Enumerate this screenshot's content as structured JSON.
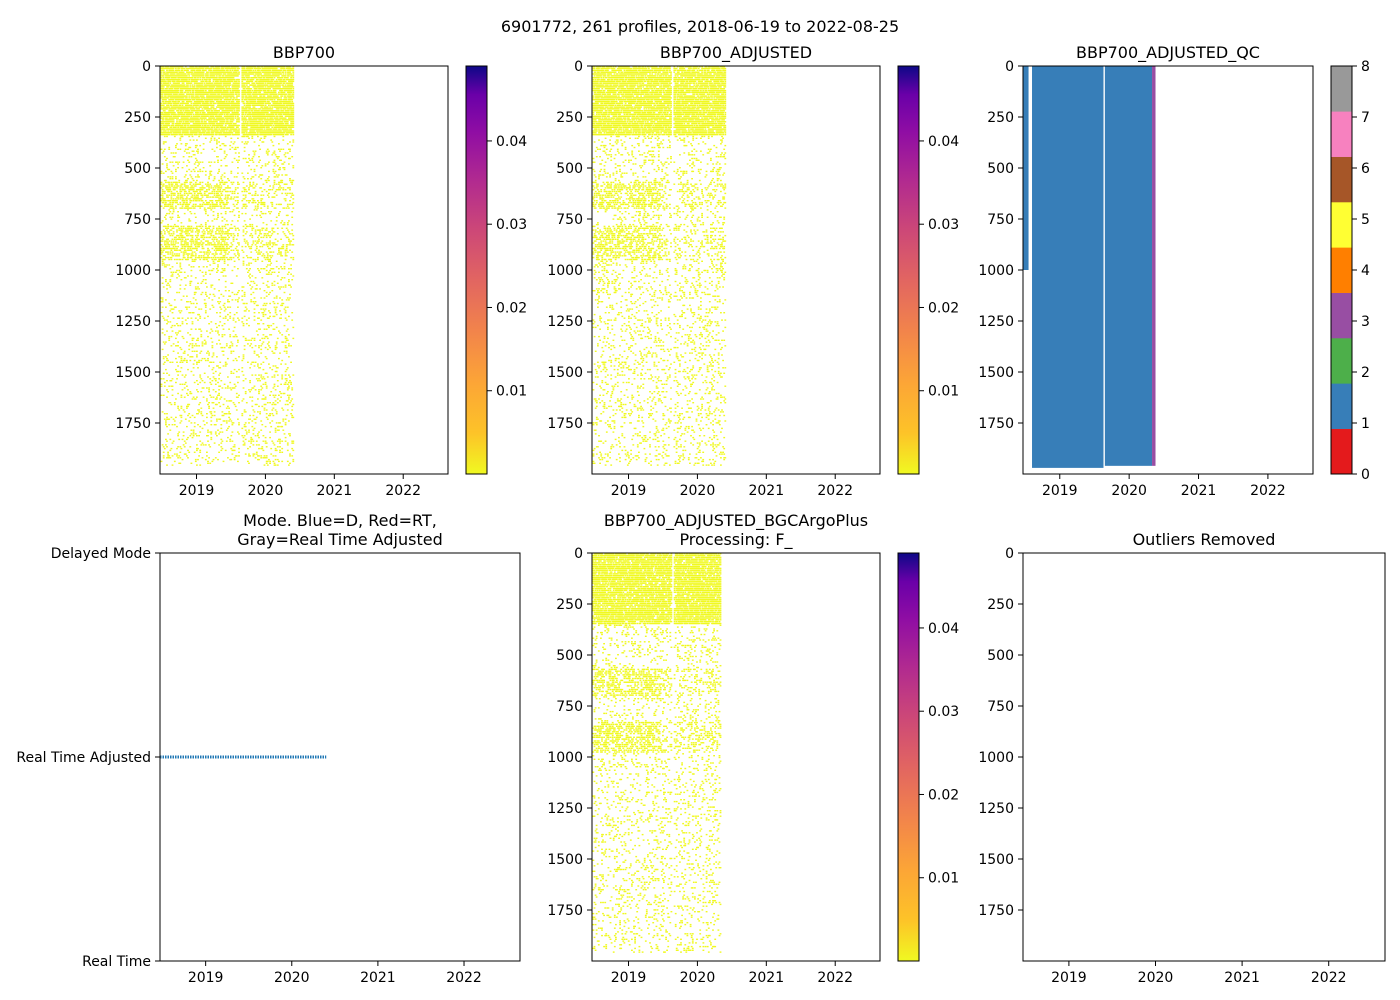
{
  "suptitle": "6901772, 261 profiles, 2018-06-19 to 2022-08-25",
  "chart_data": [
    {
      "type": "heatmap",
      "title": "BBP700",
      "x_ticks": [
        "2019",
        "2020",
        "2021",
        "2022"
      ],
      "x_tick_values": [
        2019,
        2020,
        2021,
        2022
      ],
      "xlim": [
        2018.47,
        2022.65
      ],
      "y_ticks": [
        "0",
        "250",
        "500",
        "750",
        "1000",
        "1250",
        "1500",
        "1750"
      ],
      "y_tick_values": [
        0,
        250,
        500,
        750,
        1000,
        1250,
        1500,
        1750
      ],
      "ylim": [
        0,
        2000
      ],
      "y_inverted": true,
      "data_extent": {
        "x": [
          2018.47,
          2020.4
        ],
        "y": [
          0,
          1960
        ]
      },
      "dense_bands": [
        [
          0,
          340
        ],
        [
          560,
          700
        ],
        [
          780,
          950
        ]
      ],
      "data_color": "#f0f921",
      "colorbar": {
        "colormap": "plasma_r",
        "range": [
          0,
          0.049
        ],
        "ticks": [
          "0.01",
          "0.02",
          "0.03",
          "0.04"
        ],
        "tick_values": [
          0.01,
          0.02,
          0.03,
          0.04
        ]
      }
    },
    {
      "type": "heatmap",
      "title": "BBP700_ADJUSTED",
      "x_ticks": [
        "2019",
        "2020",
        "2021",
        "2022"
      ],
      "x_tick_values": [
        2019,
        2020,
        2021,
        2022
      ],
      "xlim": [
        2018.47,
        2022.65
      ],
      "y_ticks": [
        "0",
        "250",
        "500",
        "750",
        "1000",
        "1250",
        "1500",
        "1750"
      ],
      "y_tick_values": [
        0,
        250,
        500,
        750,
        1000,
        1250,
        1500,
        1750
      ],
      "ylim": [
        0,
        2000
      ],
      "y_inverted": true,
      "data_extent": {
        "x": [
          2018.47,
          2020.4
        ],
        "y": [
          0,
          1960
        ]
      },
      "dense_bands": [
        [
          0,
          340
        ],
        [
          560,
          700
        ],
        [
          780,
          950
        ]
      ],
      "data_color": "#f0f921",
      "colorbar": {
        "colormap": "plasma_r",
        "range": [
          0,
          0.049
        ],
        "ticks": [
          "0.01",
          "0.02",
          "0.03",
          "0.04"
        ],
        "tick_values": [
          0.01,
          0.02,
          0.03,
          0.04
        ]
      }
    },
    {
      "type": "heatmap",
      "title": "BBP700_ADJUSTED_QC",
      "x_ticks": [
        "2019",
        "2020",
        "2021",
        "2022"
      ],
      "x_tick_values": [
        2019,
        2020,
        2021,
        2022
      ],
      "xlim": [
        2018.47,
        2022.65
      ],
      "y_ticks": [
        "0",
        "250",
        "500",
        "750",
        "1000",
        "1250",
        "1500",
        "1750"
      ],
      "y_tick_values": [
        0,
        250,
        500,
        750,
        1000,
        1250,
        1500,
        1750
      ],
      "ylim": [
        0,
        2000
      ],
      "y_inverted": true,
      "qc_blocks": [
        {
          "x": [
            2018.47,
            2018.55
          ],
          "y": [
            0,
            1000
          ],
          "flag": 1
        },
        {
          "x": [
            2018.6,
            2019.63
          ],
          "y": [
            0,
            1970
          ],
          "flag": 1
        },
        {
          "x": [
            2019.65,
            2020.33
          ],
          "y": [
            0,
            1960
          ],
          "flag": 1
        },
        {
          "x": [
            2020.33,
            2020.38
          ],
          "y": [
            0,
            1960
          ],
          "flag": 3
        }
      ],
      "colorbar": {
        "colors": [
          "#e41a1c",
          "#377eb8",
          "#4daf4a",
          "#984ea3",
          "#ff7f00",
          "#ffff33",
          "#a65628",
          "#f781bf",
          "#999999"
        ],
        "range": [
          0,
          8
        ],
        "ticks": [
          "0",
          "1",
          "2",
          "3",
          "4",
          "5",
          "6",
          "7",
          "8"
        ],
        "tick_values": [
          0,
          1,
          2,
          3,
          4,
          5,
          6,
          7,
          8
        ]
      }
    },
    {
      "type": "line",
      "title_lines": [
        "Mode. Blue=D, Red=RT,",
        "Gray=Real Time Adjusted"
      ],
      "x_ticks": [
        "2019",
        "2020",
        "2021",
        "2022"
      ],
      "x_tick_values": [
        2019,
        2020,
        2021,
        2022
      ],
      "xlim": [
        2018.47,
        2022.65
      ],
      "y_categories": [
        "Delayed Mode",
        "Real Time Adjusted",
        "Real Time"
      ],
      "ylim": [
        0,
        1
      ],
      "y_category_values": [
        0,
        0.5,
        1
      ],
      "series": [
        {
          "name": "Real Time Adjusted",
          "x_range": [
            2018.47,
            2020.4
          ],
          "y": 0.5,
          "color": "#1f77b4"
        }
      ]
    },
    {
      "type": "heatmap",
      "title_lines": [
        "BBP700_ADJUSTED_BGCArgoPlus",
        "Processing: F_"
      ],
      "x_ticks": [
        "2019",
        "2020",
        "2021",
        "2022"
      ],
      "x_tick_values": [
        2019,
        2020,
        2021,
        2022
      ],
      "xlim": [
        2018.47,
        2022.65
      ],
      "y_ticks": [
        "0",
        "250",
        "500",
        "750",
        "1000",
        "1250",
        "1500",
        "1750"
      ],
      "y_tick_values": [
        0,
        250,
        500,
        750,
        1000,
        1250,
        1500,
        1750
      ],
      "ylim": [
        0,
        2000
      ],
      "y_inverted": true,
      "data_extent": {
        "x": [
          2018.47,
          2020.33
        ],
        "y": [
          0,
          1960
        ]
      },
      "dense_bands": [
        [
          0,
          350
        ],
        [
          560,
          700
        ],
        [
          820,
          980
        ]
      ],
      "data_color": "#f0f921",
      "colorbar": {
        "colormap": "plasma_r",
        "range": [
          0,
          0.049
        ],
        "ticks": [
          "0.01",
          "0.02",
          "0.03",
          "0.04"
        ],
        "tick_values": [
          0.01,
          0.02,
          0.03,
          0.04
        ]
      }
    },
    {
      "type": "scatter",
      "title": "Outliers Removed",
      "x_ticks": [
        "2019",
        "2020",
        "2021",
        "2022"
      ],
      "x_tick_values": [
        2019,
        2020,
        2021,
        2022
      ],
      "xlim": [
        2018.47,
        2022.65
      ],
      "y_ticks": [
        "0",
        "250",
        "500",
        "750",
        "1000",
        "1250",
        "1500",
        "1750"
      ],
      "y_tick_values": [
        0,
        250,
        500,
        750,
        1000,
        1250,
        1500,
        1750
      ],
      "ylim": [
        0,
        2000
      ],
      "y_inverted": true,
      "points": []
    }
  ]
}
